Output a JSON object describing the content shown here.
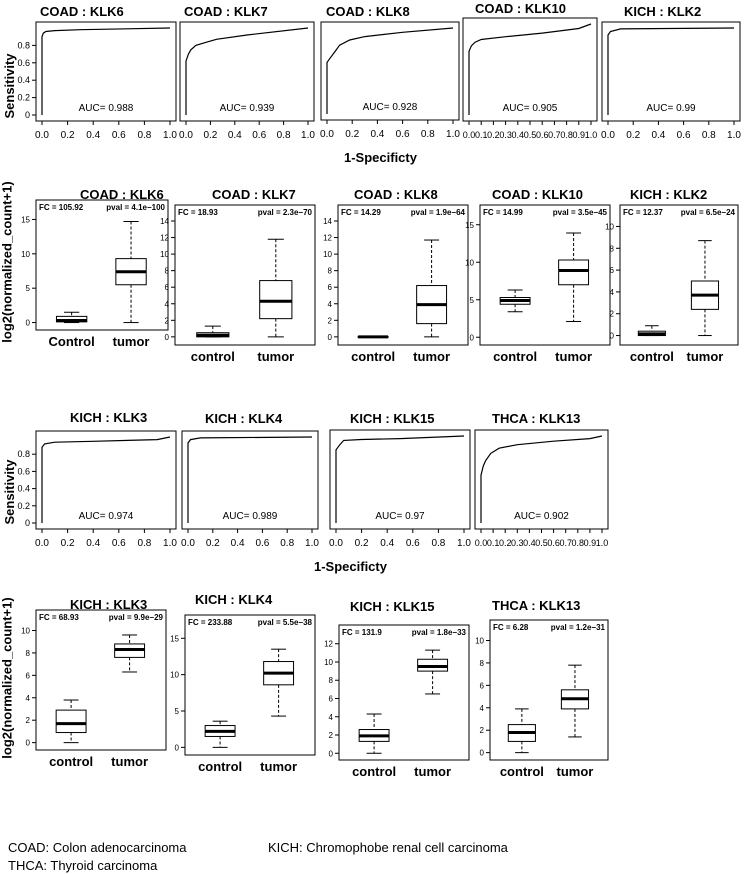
{
  "axis_labels": {
    "roc_y": "Sensitivity",
    "roc_x": "1-Specificty",
    "box_y": "log2(normalized_count+1)"
  },
  "notes": {
    "coad": "COAD: Colon adenocarcinoma",
    "kich": "KICH: Chromophobe renal cell carcinoma",
    "thca": "THCA: Thyroid carcinoma"
  },
  "chart_data": [
    {
      "type": "line",
      "subtype": "roc",
      "title": "COAD : KLK6",
      "auc_label": "AUC= 0.988",
      "xlim": [
        0,
        1
      ],
      "ylim": [
        0,
        1
      ],
      "xticks": [
        "0.0",
        "0.2",
        "0.4",
        "0.6",
        "0.8",
        "1.0"
      ],
      "yticks": [
        "0",
        "0.2",
        "0.4",
        "0.6",
        "0.8"
      ],
      "x": [
        0,
        0,
        0.01,
        0.03,
        0.1,
        0.3,
        1
      ],
      "y": [
        0,
        0.9,
        0.94,
        0.96,
        0.97,
        0.98,
        1
      ]
    },
    {
      "type": "line",
      "subtype": "roc",
      "title": "COAD : KLK7",
      "auc_label": "AUC= 0.939",
      "xlim": [
        0,
        1
      ],
      "ylim": [
        0,
        1
      ],
      "xticks": [
        "0.0",
        "0.2",
        "0.4",
        "0.6",
        "0.8",
        "1.0"
      ],
      "yticks": [],
      "x": [
        0,
        0,
        0.02,
        0.04,
        0.08,
        0.15,
        0.25,
        0.5,
        1
      ],
      "y": [
        0,
        0.62,
        0.7,
        0.75,
        0.8,
        0.83,
        0.87,
        0.92,
        1
      ]
    },
    {
      "type": "line",
      "subtype": "roc",
      "title": "COAD : KLK8",
      "auc_label": "AUC= 0.928",
      "xlim": [
        0,
        1
      ],
      "ylim": [
        0,
        1
      ],
      "xticks": [
        "0.0",
        "0.2",
        "0.4",
        "0.6",
        "0.8",
        "1.0"
      ],
      "yticks": [],
      "x": [
        0,
        0,
        0.03,
        0.06,
        0.1,
        0.18,
        0.3,
        0.6,
        1
      ],
      "y": [
        0,
        0.6,
        0.66,
        0.72,
        0.8,
        0.86,
        0.9,
        0.95,
        1
      ]
    },
    {
      "type": "line",
      "subtype": "roc",
      "title": "COAD : KLK10",
      "auc_label": "AUC= 0.905",
      "xlim": [
        0,
        1
      ],
      "ylim": [
        0,
        1
      ],
      "xticks": [
        "0.0",
        "0.1",
        "0.2",
        "0.3",
        "0.4",
        "0.5",
        "0.6",
        "0.7",
        "0.8",
        "0.9",
        "1.0"
      ],
      "yticks": [],
      "x": [
        0,
        0,
        0.02,
        0.05,
        0.1,
        0.3,
        0.6,
        0.9,
        1
      ],
      "y": [
        0,
        0.7,
        0.76,
        0.8,
        0.83,
        0.86,
        0.9,
        0.95,
        1
      ]
    },
    {
      "type": "line",
      "subtype": "roc",
      "title": "KICH : KLK2",
      "auc_label": "AUC= 0.99",
      "xlim": [
        0,
        1
      ],
      "ylim": [
        0,
        1
      ],
      "xticks": [
        "0.0",
        "0.2",
        "0.4",
        "0.6",
        "0.8",
        "1.0"
      ],
      "yticks": [],
      "x": [
        0,
        0,
        0.02,
        0.1,
        1
      ],
      "y": [
        0,
        0.92,
        0.96,
        0.99,
        1
      ]
    },
    {
      "type": "box",
      "title": "COAD : KLK6",
      "fc": "FC = 105.92",
      "pval": "pval = 4.1e−100",
      "categories": [
        "Control",
        "tumor"
      ],
      "ylim": [
        -0.5,
        15.5
      ],
      "yticks": [
        0,
        5,
        10,
        15
      ],
      "boxes": [
        {
          "min": 0,
          "q1": 0.1,
          "median": 0.3,
          "q3": 0.9,
          "max": 1.5
        },
        {
          "min": 0,
          "q1": 5.5,
          "median": 7.4,
          "q3": 9.3,
          "max": 14.7
        }
      ]
    },
    {
      "type": "box",
      "title": "COAD : KLK7",
      "fc": "FC = 18.93",
      "pval": "pval = 2.3e−70",
      "categories": [
        "control",
        "tumor"
      ],
      "ylim": [
        -0.5,
        14
      ],
      "yticks": [
        0,
        2,
        4,
        6,
        8,
        10,
        12,
        14
      ],
      "boxes": [
        {
          "min": 0,
          "q1": 0,
          "median": 0.2,
          "q3": 0.5,
          "max": 1.3
        },
        {
          "min": 0,
          "q1": 2.2,
          "median": 4.3,
          "q3": 6.8,
          "max": 11.8
        }
      ]
    },
    {
      "type": "box",
      "title": "COAD : KLK8",
      "fc": "FC = 14.29",
      "pval": "pval = 1.9e−64",
      "categories": [
        "control",
        "tumor"
      ],
      "ylim": [
        -0.5,
        14
      ],
      "yticks": [
        0,
        2,
        4,
        6,
        8,
        10,
        12,
        14
      ],
      "boxes": [
        {
          "min": 0,
          "q1": 0,
          "median": 0,
          "q3": 0.05,
          "max": 0.1
        },
        {
          "min": 0,
          "q1": 1.6,
          "median": 3.9,
          "q3": 6.2,
          "max": 11.7
        }
      ]
    },
    {
      "type": "box",
      "title": "COAD : KLK10",
      "fc": "FC = 14.99",
      "pval": "pval = 3.5e−45",
      "categories": [
        "control",
        "tumor"
      ],
      "ylim": [
        -0.5,
        15.5
      ],
      "yticks": [
        0,
        5,
        10,
        15
      ],
      "boxes": [
        {
          "min": 3.4,
          "q1": 4.4,
          "median": 4.9,
          "q3": 5.3,
          "max": 6.3
        },
        {
          "min": 2.1,
          "q1": 7,
          "median": 8.9,
          "q3": 10.3,
          "max": 13.9
        }
      ]
    },
    {
      "type": "box",
      "title": "KICH : KLK2",
      "fc": "FC = 12.37",
      "pval": "pval = 6.5e−24",
      "categories": [
        "control",
        "tumor"
      ],
      "ylim": [
        -0.5,
        10.5
      ],
      "yticks": [
        0,
        2,
        4,
        6,
        8,
        10
      ],
      "boxes": [
        {
          "min": 0,
          "q1": 0,
          "median": 0.15,
          "q3": 0.4,
          "max": 0.9
        },
        {
          "min": 0,
          "q1": 2.4,
          "median": 3.7,
          "q3": 5,
          "max": 8.7
        }
      ]
    },
    {
      "type": "line",
      "subtype": "roc",
      "title": "KICH : KLK3",
      "auc_label": "AUC= 0.974",
      "xlim": [
        0,
        1
      ],
      "ylim": [
        0,
        1
      ],
      "xticks": [
        "0.0",
        "0.2",
        "0.4",
        "0.6",
        "0.8",
        "1.0"
      ],
      "yticks": [
        "0",
        "0.2",
        "0.4",
        "0.6",
        "0.8"
      ],
      "x": [
        0,
        0,
        0.02,
        0.1,
        0.4,
        0.9,
        1
      ],
      "y": [
        0,
        0.88,
        0.92,
        0.94,
        0.95,
        0.97,
        1
      ]
    },
    {
      "type": "line",
      "subtype": "roc",
      "title": "KICH : KLK4",
      "auc_label": "AUC= 0.989",
      "xlim": [
        0,
        1
      ],
      "ylim": [
        0,
        1
      ],
      "xticks": [
        "0.0",
        "0.2",
        "0.4",
        "0.6",
        "0.8",
        "1.0"
      ],
      "yticks": [],
      "x": [
        0,
        0,
        0.02,
        0.1,
        1
      ],
      "y": [
        0,
        0.93,
        0.97,
        0.99,
        1
      ]
    },
    {
      "type": "line",
      "subtype": "roc",
      "title": "KICH : KLK15",
      "auc_label": "AUC= 0.97",
      "xlim": [
        0,
        1
      ],
      "ylim": [
        0,
        1
      ],
      "xticks": [
        "0.0",
        "0.2",
        "0.4",
        "0.6",
        "0.8",
        "1.0"
      ],
      "yticks": [],
      "x": [
        0,
        0,
        0.03,
        0.06,
        0.2,
        0.5,
        1
      ],
      "y": [
        0,
        0.84,
        0.9,
        0.95,
        0.96,
        0.97,
        1
      ]
    },
    {
      "type": "line",
      "subtype": "roc",
      "title": "THCA : KLK13",
      "auc_label": "AUC= 0.902",
      "xlim": [
        0,
        1
      ],
      "ylim": [
        0,
        1
      ],
      "xticks": [
        "0.0",
        "0.1",
        "0.2",
        "0.3",
        "0.4",
        "0.5",
        "0.6",
        "0.7",
        "0.8",
        "0.9",
        "1.0"
      ],
      "yticks": [],
      "x": [
        0,
        0,
        0.02,
        0.04,
        0.08,
        0.15,
        0.3,
        0.6,
        0.9,
        1
      ],
      "y": [
        0,
        0.55,
        0.66,
        0.72,
        0.8,
        0.86,
        0.9,
        0.94,
        0.97,
        1
      ]
    },
    {
      "type": "box",
      "title": "KICH : KLK3",
      "fc": "FC = 68.93",
      "pval": "pval = 9.9e−29",
      "categories": [
        "control",
        "tumor"
      ],
      "ylim": [
        -0.3,
        10.4
      ],
      "yticks": [
        0,
        2,
        4,
        6,
        8,
        10
      ],
      "boxes": [
        {
          "min": 0,
          "q1": 0.9,
          "median": 1.7,
          "q3": 2.9,
          "max": 3.8
        },
        {
          "min": 6.3,
          "q1": 7.6,
          "median": 8.3,
          "q3": 8.8,
          "max": 9.6
        }
      ]
    },
    {
      "type": "box",
      "title": "KICH : KLK4",
      "fc": "FC = 233.88",
      "pval": "pval = 5.5e−38",
      "categories": [
        "control",
        "tumor"
      ],
      "ylim": [
        -0.5,
        16
      ],
      "yticks": [
        0,
        5,
        10,
        15
      ],
      "boxes": [
        {
          "min": 0,
          "q1": 1.5,
          "median": 2.2,
          "q3": 3,
          "max": 3.6
        },
        {
          "min": 4.3,
          "q1": 8.6,
          "median": 10.2,
          "q3": 11.8,
          "max": 13.5
        }
      ]
    },
    {
      "type": "box",
      "title": "KICH : KLK15",
      "fc": "FC = 131.9",
      "pval": "pval = 1.8e−33",
      "categories": [
        "control",
        "tumor"
      ],
      "ylim": [
        -0.3,
        12.3
      ],
      "yticks": [
        0,
        2,
        4,
        6,
        8,
        10,
        12
      ],
      "boxes": [
        {
          "min": 0,
          "q1": 1.3,
          "median": 1.9,
          "q3": 2.6,
          "max": 4.3
        },
        {
          "min": 6.5,
          "q1": 9,
          "median": 9.5,
          "q3": 10.3,
          "max": 11.3
        }
      ]
    },
    {
      "type": "box",
      "title": "THCA : KLK13",
      "fc": "FC = 6.28",
      "pval": "pval = 1.2e−31",
      "categories": [
        "control",
        "tumor"
      ],
      "ylim": [
        -0.3,
        10.4
      ],
      "yticks": [
        0,
        2,
        4,
        6,
        8,
        10
      ],
      "boxes": [
        {
          "min": 0,
          "q1": 1,
          "median": 1.8,
          "q3": 2.5,
          "max": 3.9
        },
        {
          "min": 1.4,
          "q1": 3.9,
          "median": 4.8,
          "q3": 5.6,
          "max": 7.8
        }
      ]
    }
  ]
}
